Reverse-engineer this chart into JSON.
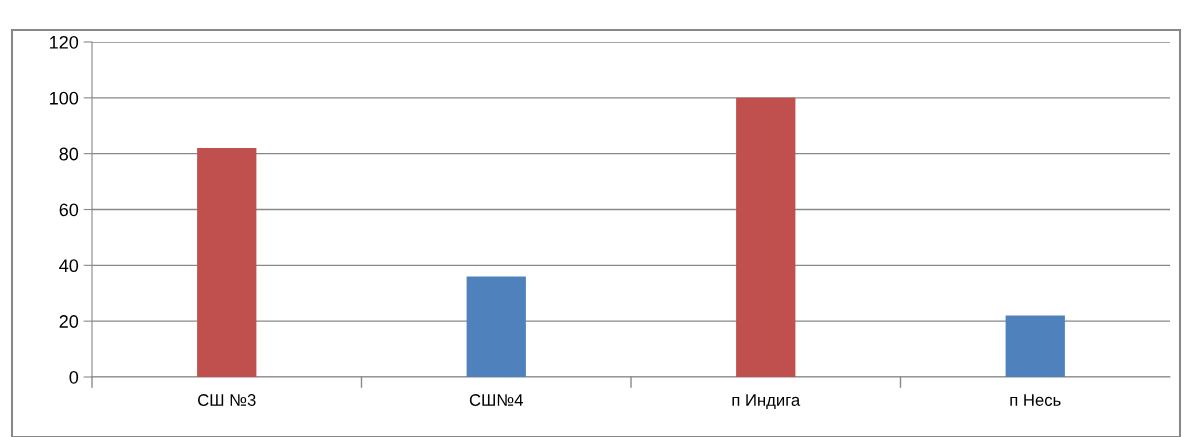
{
  "chart_data": {
    "type": "bar",
    "categories": [
      "СШ №3",
      "СШ№4",
      "п Индига",
      "п Несь"
    ],
    "values": [
      82,
      36,
      100,
      22
    ],
    "colors": [
      "#c0504d",
      "#4f81bd",
      "#c0504d",
      "#4f81bd"
    ],
    "ylim": [
      0,
      120
    ],
    "yticks": [
      0,
      20,
      40,
      60,
      80,
      100,
      120
    ],
    "grid": "y",
    "legend": false
  }
}
